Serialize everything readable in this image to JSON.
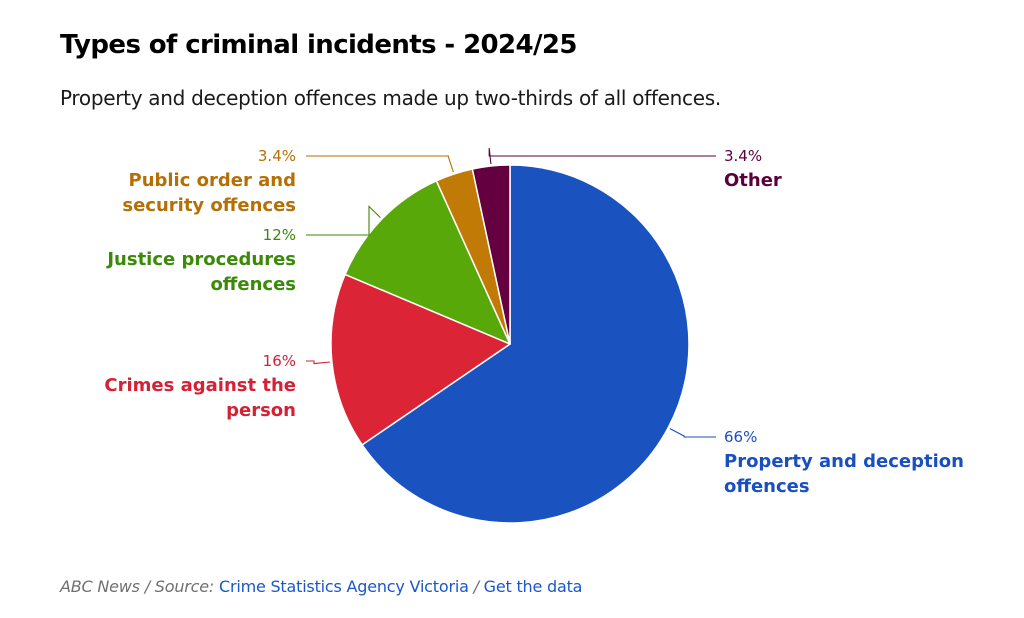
{
  "header": {
    "title": "Types of criminal incidents - 2024/25",
    "subtitle": "Property and deception offences made up two-thirds of all offences."
  },
  "chart_data": {
    "type": "pie",
    "title": "Types of criminal incidents - 2024/25",
    "slices": [
      {
        "name": "Property and deception offences",
        "value": 66,
        "label": "66%",
        "color": "#1a53c0"
      },
      {
        "name": "Crimes against the person",
        "value": 16,
        "label": "16%",
        "color": "#dc2437"
      },
      {
        "name": "Justice procedures offences",
        "value": 12,
        "label": "12%",
        "color": "#59a80a"
      },
      {
        "name": "Public order and security offences",
        "value": 3.4,
        "label": "3.4%",
        "color": "#c17a05"
      },
      {
        "name": "Other",
        "value": 3.4,
        "label": "3.4%",
        "color": "#640040"
      }
    ],
    "label_lines": [
      [
        "Property and deception",
        "offences"
      ],
      [
        "Crimes against the",
        "person"
      ],
      [
        "Justice procedures",
        "offences"
      ],
      [
        "Public order and",
        "security offences"
      ],
      [
        "Other"
      ]
    ],
    "label_colors": [
      "#1a4fbf",
      "#d42136",
      "#3a8a08",
      "#b56f05",
      "#5a003a"
    ],
    "start_angle_deg": 0,
    "direction": "clockwise"
  },
  "footer": {
    "source_prefix": "ABC News / Source:",
    "source_link": "Crime Statistics Agency Victoria",
    "separator": "/",
    "data_link": "Get the data"
  }
}
